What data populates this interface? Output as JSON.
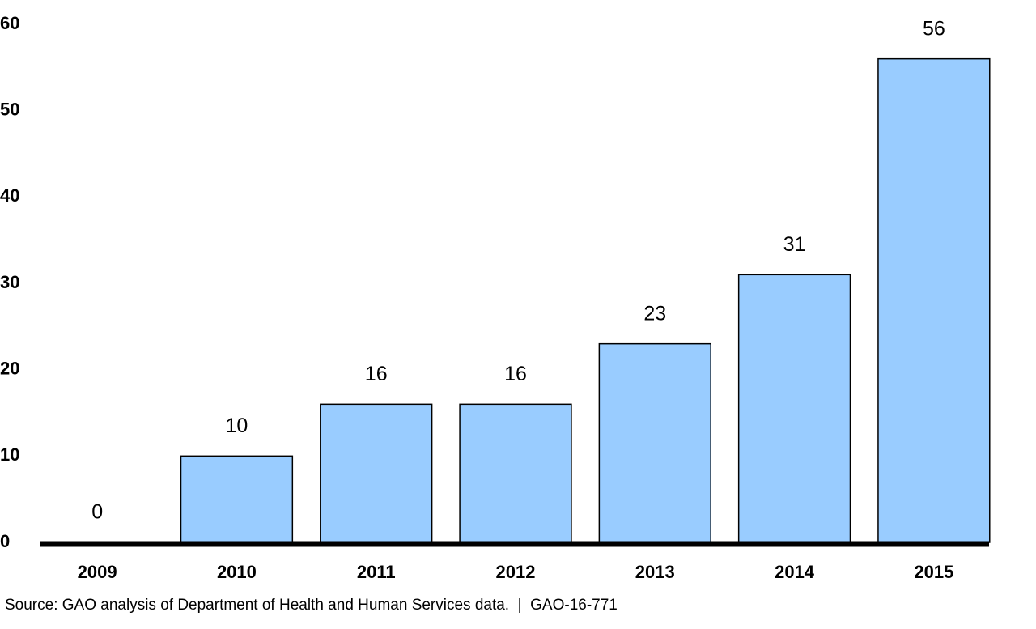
{
  "chart_data": {
    "type": "bar",
    "categories": [
      "2009",
      "2010",
      "2011",
      "2012",
      "2013",
      "2014",
      "2015"
    ],
    "values": [
      0,
      10,
      16,
      16,
      23,
      31,
      56
    ],
    "color": "#99ccff",
    "ylim": [
      0,
      60
    ],
    "yticks": [
      0,
      10,
      20,
      30,
      40,
      50,
      60
    ],
    "grid": false,
    "source": "Source: GAO analysis of Department of Health and Human Services data.  |  GAO-16-771"
  }
}
